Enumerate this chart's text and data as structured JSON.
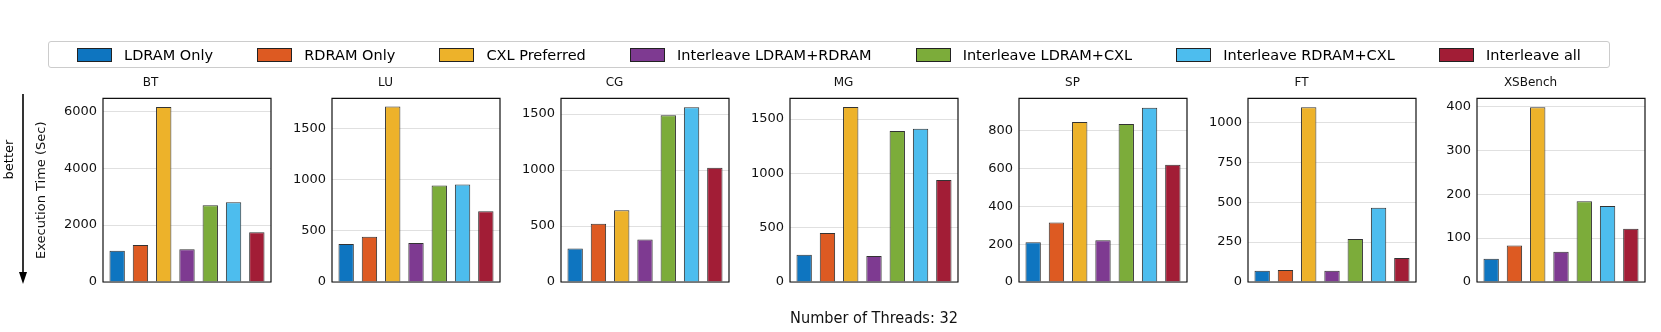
{
  "chart_data": [
    {
      "type": "bar",
      "title": "BT",
      "ylabel": "Execution Time (Sec)",
      "annotations": [
        "better"
      ],
      "legend": "top",
      "grid": "y",
      "categories": [
        null
      ],
      "ylim": [
        0,
        6450
      ],
      "yticks": [
        0,
        2000,
        4000,
        6000
      ],
      "series": [
        {
          "name": "LDRAM Only",
          "color": "#0e75c0",
          "values": [
            1100
          ]
        },
        {
          "name": "RDRAM Only",
          "color": "#dd5a22",
          "values": [
            1300
          ]
        },
        {
          "name": "CXL Preferred",
          "color": "#edb22a",
          "values": [
            6150
          ]
        },
        {
          "name": "Interleave LDRAM+RDRAM",
          "color": "#7e3a91",
          "values": [
            1150
          ]
        },
        {
          "name": "Interleave LDRAM+CXL",
          "color": "#7cac3a",
          "values": [
            2700
          ]
        },
        {
          "name": "Interleave RDRAM+CXL",
          "color": "#4dbdee",
          "values": [
            2800
          ]
        },
        {
          "name": "Interleave all",
          "color": "#a21d36",
          "values": [
            1750
          ]
        }
      ]
    },
    {
      "type": "bar",
      "title": "LU",
      "grid": "y",
      "categories": [
        null
      ],
      "ylim": [
        0,
        1790
      ],
      "yticks": [
        0,
        500,
        1000,
        1500
      ],
      "series": [
        {
          "color": "#0e75c0",
          "values": [
            370
          ]
        },
        {
          "color": "#dd5a22",
          "values": [
            440
          ]
        },
        {
          "color": "#edb22a",
          "values": [
            1710
          ]
        },
        {
          "color": "#7e3a91",
          "values": [
            380
          ]
        },
        {
          "color": "#7cac3a",
          "values": [
            940
          ]
        },
        {
          "color": "#4dbdee",
          "values": [
            950
          ]
        },
        {
          "color": "#a21d36",
          "values": [
            690
          ]
        }
      ]
    },
    {
      "type": "bar",
      "title": "CG",
      "grid": "y",
      "categories": [
        null
      ],
      "ylim": [
        0,
        1640
      ],
      "yticks": [
        0,
        500,
        1000,
        1500
      ],
      "series": [
        {
          "color": "#0e75c0",
          "values": [
            300
          ]
        },
        {
          "color": "#dd5a22",
          "values": [
            520
          ]
        },
        {
          "color": "#edb22a",
          "values": [
            640
          ]
        },
        {
          "color": "#7e3a91",
          "values": [
            380
          ]
        },
        {
          "color": "#7cac3a",
          "values": [
            1490
          ]
        },
        {
          "color": "#4dbdee",
          "values": [
            1560
          ]
        },
        {
          "color": "#a21d36",
          "values": [
            1020
          ]
        }
      ]
    },
    {
      "type": "bar",
      "title": "MG",
      "xlabel": "Number of Threads: 32",
      "grid": "y",
      "categories": [
        null
      ],
      "ylim": [
        0,
        1690
      ],
      "yticks": [
        0,
        500,
        1000,
        1500
      ],
      "series": [
        {
          "color": "#0e75c0",
          "values": [
            250
          ]
        },
        {
          "color": "#dd5a22",
          "values": [
            450
          ]
        },
        {
          "color": "#edb22a",
          "values": [
            1610
          ]
        },
        {
          "color": "#7e3a91",
          "values": [
            240
          ]
        },
        {
          "color": "#7cac3a",
          "values": [
            1390
          ]
        },
        {
          "color": "#4dbdee",
          "values": [
            1410
          ]
        },
        {
          "color": "#a21d36",
          "values": [
            940
          ]
        }
      ]
    },
    {
      "type": "bar",
      "title": "SP",
      "grid": "y",
      "categories": [
        null
      ],
      "ylim": [
        0,
        970
      ],
      "yticks": [
        0,
        200,
        400,
        600,
        800
      ],
      "series": [
        {
          "color": "#0e75c0",
          "values": [
            210
          ]
        },
        {
          "color": "#dd5a22",
          "values": [
            315
          ]
        },
        {
          "color": "#edb22a",
          "values": [
            845
          ]
        },
        {
          "color": "#7e3a91",
          "values": [
            220
          ]
        },
        {
          "color": "#7cac3a",
          "values": [
            835
          ]
        },
        {
          "color": "#4dbdee",
          "values": [
            920
          ]
        },
        {
          "color": "#a21d36",
          "values": [
            620
          ]
        }
      ]
    },
    {
      "type": "bar",
      "title": "FT",
      "grid": "y",
      "categories": [
        null
      ],
      "ylim": [
        0,
        1150
      ],
      "yticks": [
        0,
        250,
        500,
        750,
        1000
      ],
      "series": [
        {
          "color": "#0e75c0",
          "values": [
            70
          ]
        },
        {
          "color": "#dd5a22",
          "values": [
            75
          ]
        },
        {
          "color": "#edb22a",
          "values": [
            1095
          ]
        },
        {
          "color": "#7e3a91",
          "values": [
            70
          ]
        },
        {
          "color": "#7cac3a",
          "values": [
            270
          ]
        },
        {
          "color": "#4dbdee",
          "values": [
            465
          ]
        },
        {
          "color": "#a21d36",
          "values": [
            150
          ]
        }
      ]
    },
    {
      "type": "bar",
      "title": "XSBench",
      "grid": "y",
      "categories": [
        null
      ],
      "ylim": [
        0,
        418
      ],
      "yticks": [
        0,
        100,
        200,
        300,
        400
      ],
      "series": [
        {
          "color": "#0e75c0",
          "values": [
            53
          ]
        },
        {
          "color": "#dd5a22",
          "values": [
            83
          ]
        },
        {
          "color": "#edb22a",
          "values": [
            398
          ]
        },
        {
          "color": "#7e3a91",
          "values": [
            69
          ]
        },
        {
          "color": "#7cac3a",
          "values": [
            184
          ]
        },
        {
          "color": "#4dbdee",
          "values": [
            173
          ]
        },
        {
          "color": "#a21d36",
          "values": [
            121
          ]
        }
      ]
    }
  ]
}
